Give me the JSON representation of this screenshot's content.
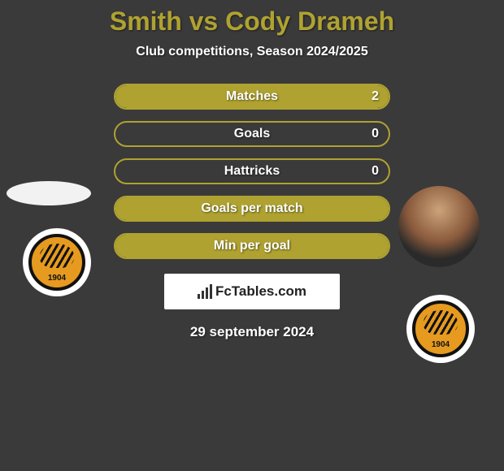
{
  "title": "Smith vs Cody Drameh",
  "subtitle": "Club competitions, Season 2024/2025",
  "colors": {
    "accent": "#afa231",
    "background": "#3a3a3a",
    "text": "#ffffff",
    "watermark_bg": "#ffffff",
    "watermark_text": "#222222"
  },
  "players": {
    "left": {
      "name": "Smith",
      "club_badge_year": "1904"
    },
    "right": {
      "name": "Cody Drameh",
      "club_badge_year": "1904"
    }
  },
  "stats": [
    {
      "label": "Matches",
      "left_fill_pct": 50,
      "right_fill_pct": 50,
      "right_value": "2"
    },
    {
      "label": "Goals",
      "left_fill_pct": 0,
      "right_fill_pct": 0,
      "right_value": "0"
    },
    {
      "label": "Hattricks",
      "left_fill_pct": 0,
      "right_fill_pct": 0,
      "right_value": "0"
    },
    {
      "label": "Goals per match",
      "left_fill_pct": 100,
      "right_fill_pct": 100
    },
    {
      "label": "Min per goal",
      "left_fill_pct": 100,
      "right_fill_pct": 100
    }
  ],
  "watermark": "FcTables.com",
  "date": "29 september 2024"
}
